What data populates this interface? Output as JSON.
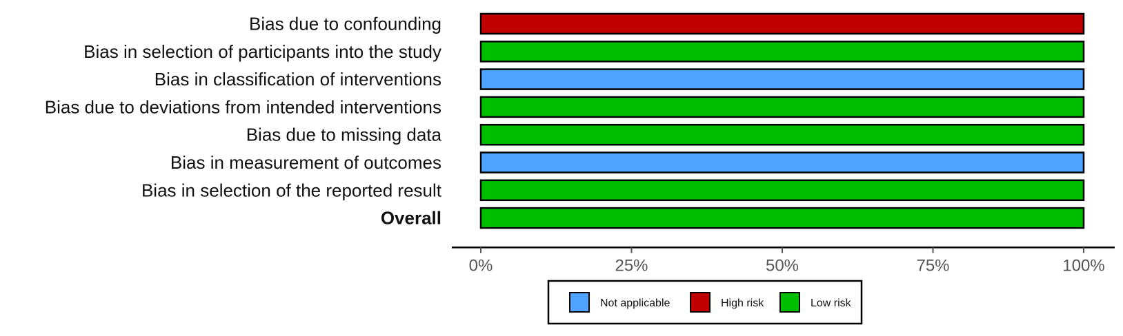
{
  "chart_data": {
    "type": "bar",
    "orientation": "horizontal",
    "stacked": true,
    "percent": true,
    "categories": [
      "Bias due to confounding",
      "Bias in selection of participants into the study",
      "Bias in classification of interventions",
      "Bias due to deviations from intended interventions",
      "Bias due to missing data",
      "Bias in measurement of outcomes",
      "Bias in selection of the reported result",
      "Overall"
    ],
    "bold_categories": [
      "Overall"
    ],
    "series": [
      {
        "name": "Not applicable",
        "color": "#4da3ff",
        "values": [
          0,
          0,
          100,
          0,
          0,
          100,
          0,
          0
        ]
      },
      {
        "name": "High risk",
        "color": "#c00000",
        "values": [
          100,
          0,
          0,
          0,
          0,
          0,
          0,
          0
        ]
      },
      {
        "name": "Low risk",
        "color": "#00bf00",
        "values": [
          0,
          100,
          0,
          100,
          100,
          0,
          100,
          100
        ]
      }
    ],
    "xlim": [
      0,
      100
    ],
    "xticks": [
      0,
      25,
      50,
      75,
      100
    ],
    "xtick_labels": [
      "0%",
      "25%",
      "50%",
      "75%",
      "100%"
    ],
    "xlabel": "",
    "ylabel": "",
    "title": "",
    "grid": false,
    "legend": {
      "position": "bottom",
      "entries": [
        "Not applicable",
        "High risk",
        "Low risk"
      ]
    }
  }
}
